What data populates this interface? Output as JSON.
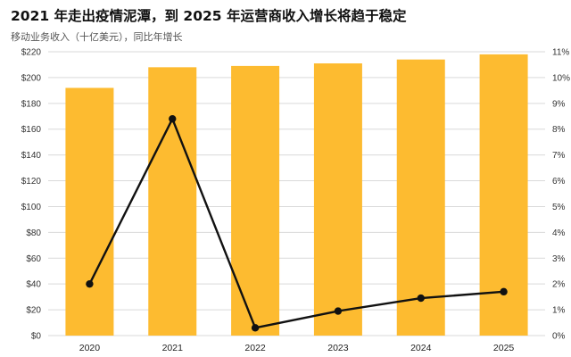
{
  "title": "2021 年走出疫情泥潭，到 2025 年运营商收入增长将趋于稳定",
  "subtitle": "移动业务收入（十亿美元），同比年增长",
  "colors": {
    "bar": "#FDBB30",
    "line": "#111111",
    "grid": "#d9d9d9"
  },
  "chart_data": {
    "type": "bar",
    "title": "2021 年走出疫情泥潭，到 2025 年运营商收入增长将趋于稳定",
    "subtitle": "移动业务收入（十亿美元），同比年增长",
    "categories": [
      "2020",
      "2021",
      "2022",
      "2023",
      "2024",
      "2025"
    ],
    "series": [
      {
        "type": "bar",
        "axis": "left",
        "values": [
          192,
          208,
          209,
          211,
          214,
          218
        ]
      },
      {
        "type": "line",
        "axis": "right",
        "values": [
          2.0,
          8.4,
          0.3,
          0.95,
          1.45,
          1.7
        ]
      }
    ],
    "y_left": {
      "ylim": [
        0,
        220
      ],
      "ticks": [
        0,
        20,
        40,
        60,
        80,
        100,
        120,
        140,
        160,
        180,
        200,
        220
      ],
      "tick_labels": [
        "$0",
        "$20",
        "$40",
        "$60",
        "$80",
        "$100",
        "$120",
        "$140",
        "$160",
        "$180",
        "$200",
        "$220"
      ]
    },
    "y_right": {
      "ylim": [
        0,
        11
      ],
      "ticks": [
        0,
        1,
        2,
        3,
        4,
        5,
        6,
        7,
        8,
        9,
        10,
        11
      ],
      "tick_labels": [
        "0%",
        "1%",
        "2%",
        "3%",
        "4%",
        "5%",
        "6%",
        "7%",
        "8%",
        "9%",
        "10%",
        "11%"
      ]
    },
    "grid": true,
    "legend": "none"
  }
}
